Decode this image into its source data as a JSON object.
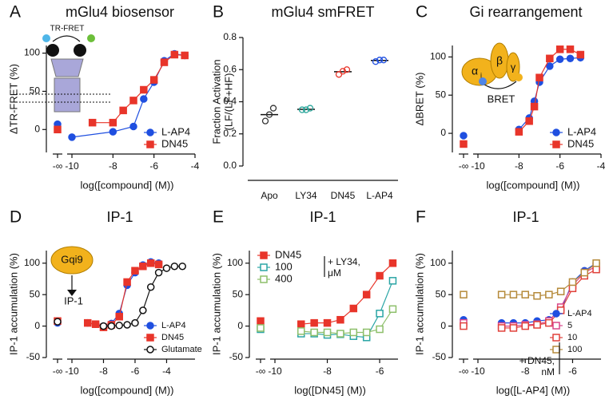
{
  "chart_data": [
    {
      "type": "dose",
      "panel": "A",
      "title": "mGlu4 biosensor",
      "ylabel": "ΔTR-FRET (%)",
      "xlabel": "log([compound] (M))",
      "xlim": [
        -10,
        -4
      ],
      "xticks": [
        -10,
        -8,
        -6,
        -4
      ],
      "ylim": [
        -30,
        110
      ],
      "yticks": [
        0,
        50,
        100
      ],
      "inf_label": "-∞",
      "legend": "lower right",
      "annotations": [
        "TR-FRET",
        "S",
        "S"
      ],
      "series": [
        {
          "name": "L-AP4",
          "color": "#1f4fe0",
          "marker": "circle",
          "filled": true,
          "inf_value": 7,
          "x": [
            -10,
            -8,
            -7,
            -6.5,
            -6,
            -5.5,
            -5,
            -4.5
          ],
          "values": [
            -10,
            -3,
            4,
            40,
            62,
            90,
            99,
            97
          ]
        },
        {
          "name": "DN45",
          "color": "#e8352a",
          "marker": "square",
          "filled": true,
          "inf_value": 0,
          "x": [
            -9,
            -8,
            -7.5,
            -7,
            -6.5,
            -6,
            -5.5,
            -5,
            -4.5
          ],
          "values": [
            9,
            9,
            25,
            38,
            52,
            65,
            88,
            98,
            97
          ]
        }
      ]
    },
    {
      "type": "strip",
      "panel": "B",
      "title": "mGlu4 smFRET",
      "ylabel": [
        "Fraction Activation",
        "(LF/(LF+HF)"
      ],
      "ylim": [
        0,
        0.8
      ],
      "yticks": [
        {
          "value": 0,
          "label": "0.0"
        },
        0.2,
        0.4,
        0.6,
        0.8
      ],
      "categories": [
        "Apo",
        "LY34",
        "DN45",
        "L-AP4"
      ],
      "colors": [
        "#333333",
        "#2aa59a",
        "#e8352a",
        "#1f4fe0"
      ],
      "values": [
        [
          0.28,
          0.32,
          0.36
        ],
        [
          0.35,
          0.35,
          0.36
        ],
        [
          0.57,
          0.59,
          0.6
        ],
        [
          0.65,
          0.66,
          0.66
        ]
      ],
      "means": [
        0.32,
        0.353,
        0.587,
        0.657
      ]
    },
    {
      "type": "dose",
      "panel": "C",
      "title": "Gi rearrangement",
      "ylabel": "ΔBRET (%)",
      "xlabel": "log([compound] (M))",
      "xlim": [
        -10,
        -4
      ],
      "xticks": [
        -10,
        -8,
        -6,
        -4
      ],
      "ylim": [
        -25,
        115
      ],
      "yticks": [
        0,
        50,
        100
      ],
      "inf_label": "-∞",
      "legend": "lower right",
      "annotations": [
        "α",
        "i",
        "β",
        "γ",
        "BRET"
      ],
      "series": [
        {
          "name": "L-AP4",
          "color": "#1f4fe0",
          "marker": "circle",
          "filled": true,
          "inf_value": -3,
          "x": [
            -8,
            -7.5,
            -7.25,
            -7,
            -6.5,
            -6,
            -5.5,
            -5
          ],
          "values": [
            5,
            20,
            42,
            67,
            88,
            97,
            98,
            99
          ]
        },
        {
          "name": "DN45",
          "color": "#e8352a",
          "marker": "square",
          "filled": true,
          "inf_value": -14,
          "x": [
            -8,
            -7.5,
            -7.25,
            -7,
            -6.5,
            -6,
            -5.5,
            -5
          ],
          "values": [
            2,
            16,
            35,
            73,
            98,
            110,
            110,
            103
          ]
        }
      ]
    },
    {
      "type": "dose",
      "panel": "D",
      "title": "IP-1",
      "ylabel": "IP-1 accumulation (%)",
      "xlabel": "log([compound] (M))",
      "xlim": [
        -10,
        -2.2
      ],
      "xticks": [
        -10,
        -8,
        -6,
        -4
      ],
      "ylim": [
        -50,
        120
      ],
      "yticks": [
        -50,
        0,
        50,
        100
      ],
      "inf_label": "-∞",
      "legend": "lower right",
      "annotations": [
        "Gqi9",
        "IP-1"
      ],
      "series": [
        {
          "name": "L-AP4",
          "color": "#1f4fe0",
          "marker": "circle",
          "filled": true,
          "inf_value": 5,
          "x": [
            -9,
            -8.5,
            -8,
            -7.5,
            -7,
            -6.5,
            -6,
            -5.5,
            -5,
            -4.5
          ],
          "values": [
            5,
            3,
            0,
            4,
            20,
            65,
            85,
            97,
            102,
            100
          ]
        },
        {
          "name": "DN45",
          "color": "#e8352a",
          "marker": "square",
          "filled": true,
          "inf_value": 8,
          "x": [
            -9,
            -8.5,
            -8,
            -7.5,
            -7,
            -6.5,
            -6,
            -5.5,
            -5,
            -4.5
          ],
          "values": [
            5,
            3,
            -2,
            2,
            15,
            70,
            88,
            95,
            100,
            98
          ]
        },
        {
          "name": "Glutamate",
          "color": "#111111",
          "marker": "circle",
          "filled": false,
          "inf_value": 7,
          "x": [
            -8,
            -7.5,
            -7,
            -6.5,
            -6,
            -5.5,
            -5,
            -4.5,
            -4,
            -3.5,
            -3
          ],
          "values": [
            0,
            0,
            1,
            2,
            5,
            25,
            62,
            85,
            92,
            95,
            95
          ]
        }
      ]
    },
    {
      "type": "dose",
      "panel": "E",
      "title": "IP-1",
      "ylabel": "IP-1 accumulation (%)",
      "xlabel": "log([DN45] (M))",
      "xlim": [
        -10,
        -5.3
      ],
      "xticks": [
        -10,
        -8,
        -6
      ],
      "ylim": [
        -50,
        120
      ],
      "yticks": [
        -50,
        0,
        50,
        100
      ],
      "inf_label": "-∞",
      "legend": "upper left",
      "annotations": [
        "+ LY34,",
        "μM"
      ],
      "series": [
        {
          "name": "DN45",
          "color": "#e8352a",
          "marker": "square",
          "filled": true,
          "inf_value": 8,
          "x": [
            -9,
            -8.5,
            -8,
            -7.5,
            -7,
            -6.5,
            -6,
            -5.5
          ],
          "values": [
            3,
            5,
            5,
            10,
            28,
            50,
            80,
            100
          ]
        },
        {
          "name": "100",
          "color": "#2aa5a5",
          "marker": "square",
          "filled": false,
          "inf_value": -5,
          "x": [
            -9,
            -8.5,
            -8,
            -7.5,
            -7,
            -6.5,
            -6,
            -5.5
          ],
          "values": [
            -12,
            -12,
            -14,
            -13,
            -16,
            -18,
            20,
            72
          ]
        },
        {
          "name": "400",
          "color": "#8dbf6a",
          "marker": "square",
          "filled": false,
          "inf_value": -3,
          "x": [
            -9,
            -8.5,
            -8,
            -7.5,
            -7,
            -6.5,
            -6,
            -5.5
          ],
          "values": [
            -8,
            -10,
            -10,
            -12,
            -10,
            -10,
            -5,
            27
          ]
        }
      ]
    },
    {
      "type": "dose",
      "panel": "F",
      "title": "IP-1",
      "ylabel": "IP-1 accumulation (%)",
      "xlabel": "log([L-AP4] (M))",
      "xlim": [
        -10,
        -4.8
      ],
      "xticks": [
        -10,
        -8,
        -6
      ],
      "ylim": [
        -50,
        120
      ],
      "yticks": [
        -50,
        0,
        50,
        100
      ],
      "inf_label": "-∞",
      "legend": "lower right",
      "annotations": [
        "+ DN45,",
        "nM"
      ],
      "series": [
        {
          "name": "L-AP4",
          "color": "#1f4fe0",
          "marker": "circle",
          "filled": true,
          "inf_value": 10,
          "x": [
            -9,
            -8.5,
            -8,
            -7.5,
            -7,
            -6.5,
            -6,
            -5.5,
            -5
          ],
          "values": [
            5,
            5,
            5,
            8,
            10,
            25,
            70,
            88,
            100
          ]
        },
        {
          "name": "5",
          "color": "#d9478a",
          "marker": "square",
          "filled": false,
          "inf_value": 5,
          "x": [
            -9,
            -8.5,
            -8,
            -7.5,
            -7,
            -6.5,
            -6,
            -5.5,
            -5
          ],
          "values": [
            0,
            0,
            2,
            3,
            8,
            30,
            65,
            85,
            95
          ]
        },
        {
          "name": "10",
          "color": "#e0403a",
          "marker": "square",
          "filled": false,
          "inf_value": 0,
          "x": [
            -9,
            -8.5,
            -8,
            -7.5,
            -7,
            -6.5,
            -6,
            -5.5,
            -5
          ],
          "values": [
            -3,
            -3,
            0,
            2,
            5,
            25,
            60,
            80,
            90
          ]
        },
        {
          "name": "100",
          "color": "#b58a3a",
          "marker": "square",
          "filled": false,
          "inf_value": 50,
          "x": [
            -9,
            -8.5,
            -8,
            -7.5,
            -7,
            -6.5,
            -6,
            -5.5,
            -5
          ],
          "values": [
            50,
            50,
            50,
            48,
            50,
            55,
            70,
            85,
            100
          ]
        }
      ]
    }
  ]
}
